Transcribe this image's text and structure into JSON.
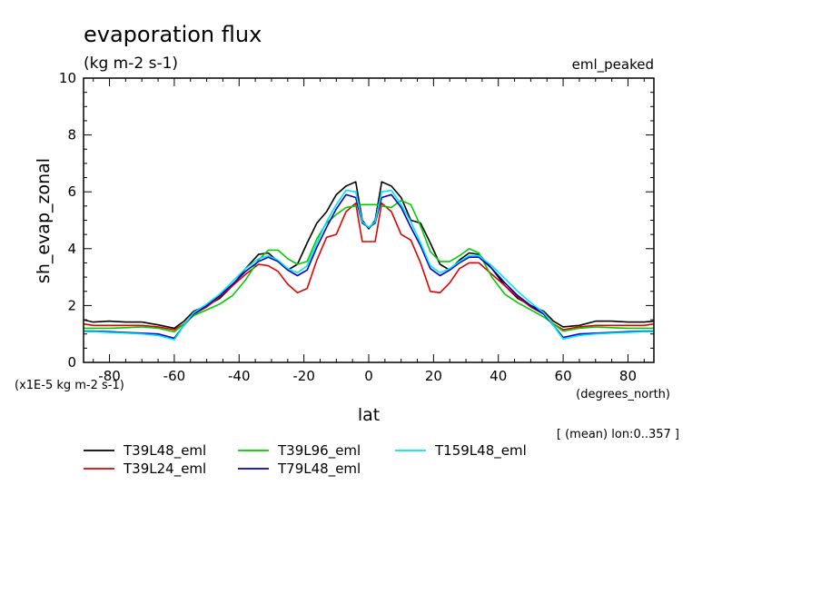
{
  "chart_data": {
    "type": "line",
    "title": "evaporation flux",
    "subtitle": "(kg m-2 s-1)",
    "experiment": "eml_peaked",
    "ylabel": "sh_evap_zonal",
    "xlabel": "lat",
    "x_units": "(degrees_north)",
    "y_units": "(x1E-5 kg m-2 s-1)",
    "footnote": "[ (mean) lon:0..357 ]",
    "xlim": [
      -88,
      88
    ],
    "ylim": [
      0,
      10
    ],
    "x_ticks": [
      -80,
      -60,
      -40,
      -20,
      0,
      20,
      40,
      60,
      80
    ],
    "y_ticks": [
      0,
      2,
      4,
      6,
      8,
      10
    ],
    "legend_position": "bottom",
    "x": [
      -88,
      -85,
      -80,
      -75,
      -70,
      -65,
      -60,
      -57,
      -54,
      -50,
      -46,
      -42,
      -38,
      -34,
      -31,
      -28,
      -25,
      -22,
      -19,
      -16,
      -13,
      -10,
      -7,
      -4,
      -2,
      0,
      2,
      4,
      7,
      10,
      13,
      16,
      19,
      22,
      25,
      28,
      31,
      34,
      38,
      42,
      46,
      50,
      54,
      57,
      60,
      65,
      70,
      75,
      80,
      85,
      88
    ],
    "series": [
      {
        "name": "T39L48_eml",
        "color": "#000000",
        "values": [
          1.5,
          1.42,
          1.45,
          1.42,
          1.42,
          1.32,
          1.2,
          1.45,
          1.8,
          2.0,
          2.25,
          2.7,
          3.3,
          3.8,
          3.85,
          3.55,
          3.25,
          3.45,
          4.2,
          4.9,
          5.3,
          5.9,
          6.2,
          6.35,
          5.0,
          4.7,
          5.0,
          6.35,
          6.2,
          5.8,
          5.0,
          4.9,
          4.2,
          3.45,
          3.25,
          3.6,
          3.85,
          3.8,
          3.3,
          2.7,
          2.25,
          2.0,
          1.8,
          1.45,
          1.25,
          1.3,
          1.45,
          1.45,
          1.42,
          1.42,
          1.45
        ]
      },
      {
        "name": "T39L24_eml",
        "color": "#e00000",
        "values": [
          1.35,
          1.3,
          1.3,
          1.3,
          1.3,
          1.25,
          1.15,
          1.35,
          1.7,
          1.95,
          2.3,
          2.7,
          3.1,
          3.45,
          3.4,
          3.2,
          2.75,
          2.45,
          2.6,
          3.6,
          4.4,
          4.5,
          5.3,
          5.6,
          4.25,
          4.25,
          4.25,
          5.6,
          5.3,
          4.5,
          4.3,
          3.5,
          2.5,
          2.45,
          2.8,
          3.3,
          3.5,
          3.5,
          3.1,
          2.7,
          2.3,
          1.95,
          1.7,
          1.35,
          1.15,
          1.25,
          1.3,
          1.3,
          1.3,
          1.3,
          1.35
        ]
      },
      {
        "name": "T39L96_eml",
        "color": "#00cc00",
        "values": [
          1.2,
          1.2,
          1.2,
          1.22,
          1.25,
          1.2,
          1.08,
          1.35,
          1.65,
          1.85,
          2.05,
          2.35,
          2.9,
          3.6,
          3.95,
          3.95,
          3.65,
          3.45,
          3.55,
          4.35,
          4.9,
          5.2,
          5.45,
          5.5,
          5.55,
          5.55,
          5.55,
          5.5,
          5.45,
          5.7,
          5.55,
          4.8,
          3.9,
          3.55,
          3.55,
          3.75,
          4.0,
          3.85,
          3.0,
          2.4,
          2.1,
          1.85,
          1.6,
          1.35,
          1.1,
          1.2,
          1.25,
          1.22,
          1.2,
          1.2,
          1.2
        ]
      },
      {
        "name": "T79L48_eml",
        "color": "#0000cc",
        "values": [
          1.1,
          1.1,
          1.08,
          1.05,
          1.03,
          1.0,
          0.85,
          1.3,
          1.7,
          2.0,
          2.35,
          2.75,
          3.2,
          3.55,
          3.7,
          3.55,
          3.25,
          3.05,
          3.25,
          4.05,
          4.75,
          5.4,
          5.9,
          5.8,
          4.9,
          4.75,
          4.9,
          5.8,
          5.9,
          5.45,
          4.75,
          4.1,
          3.3,
          3.05,
          3.25,
          3.5,
          3.7,
          3.7,
          3.3,
          2.8,
          2.35,
          2.0,
          1.7,
          1.3,
          0.88,
          1.0,
          1.03,
          1.05,
          1.08,
          1.1,
          1.1
        ]
      },
      {
        "name": "T159L48_eml",
        "color": "#00e5ee",
        "values": [
          1.08,
          1.08,
          1.05,
          1.03,
          1.0,
          0.95,
          0.8,
          1.3,
          1.75,
          2.05,
          2.4,
          2.85,
          3.3,
          3.65,
          3.75,
          3.6,
          3.3,
          3.15,
          3.4,
          4.2,
          4.95,
          5.55,
          6.05,
          6.0,
          4.95,
          4.75,
          4.95,
          6.0,
          6.05,
          5.55,
          4.95,
          4.2,
          3.4,
          3.15,
          3.3,
          3.55,
          3.75,
          3.75,
          3.4,
          2.95,
          2.5,
          2.1,
          1.75,
          1.3,
          0.82,
          0.95,
          1.0,
          1.03,
          1.05,
          1.08,
          1.08
        ]
      }
    ]
  }
}
